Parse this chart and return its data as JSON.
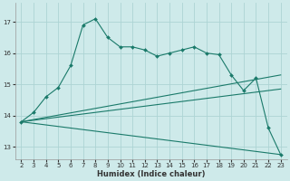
{
  "xlabel": "Humidex (Indice chaleur)",
  "bg_color": "#ceeaea",
  "grid_color": "#add4d4",
  "line_color": "#1a7a6a",
  "ylim": [
    12.6,
    17.6
  ],
  "xlim": [
    1.5,
    23.5
  ],
  "yticks": [
    13,
    14,
    15,
    16,
    17
  ],
  "xticks": [
    2,
    3,
    4,
    5,
    6,
    7,
    8,
    9,
    10,
    11,
    12,
    13,
    14,
    15,
    16,
    17,
    18,
    19,
    20,
    21,
    22,
    23
  ],
  "line1_x": [
    2,
    3,
    4,
    5,
    6,
    7,
    8,
    9,
    10,
    11,
    12,
    13,
    14,
    15,
    16,
    17,
    18,
    19,
    20,
    21,
    22,
    23
  ],
  "line1_y": [
    13.8,
    14.1,
    14.6,
    14.9,
    15.6,
    16.9,
    17.1,
    16.5,
    16.2,
    16.2,
    16.1,
    15.9,
    16.0,
    16.1,
    16.2,
    16.0,
    15.95,
    15.3,
    14.8,
    15.2,
    13.6,
    12.75
  ],
  "line2_x": [
    2,
    23
  ],
  "line2_y": [
    13.8,
    12.75
  ],
  "line3_x": [
    2,
    23
  ],
  "line3_y": [
    13.8,
    14.85
  ],
  "line4_x": [
    2,
    23
  ],
  "line4_y": [
    13.8,
    15.3
  ]
}
